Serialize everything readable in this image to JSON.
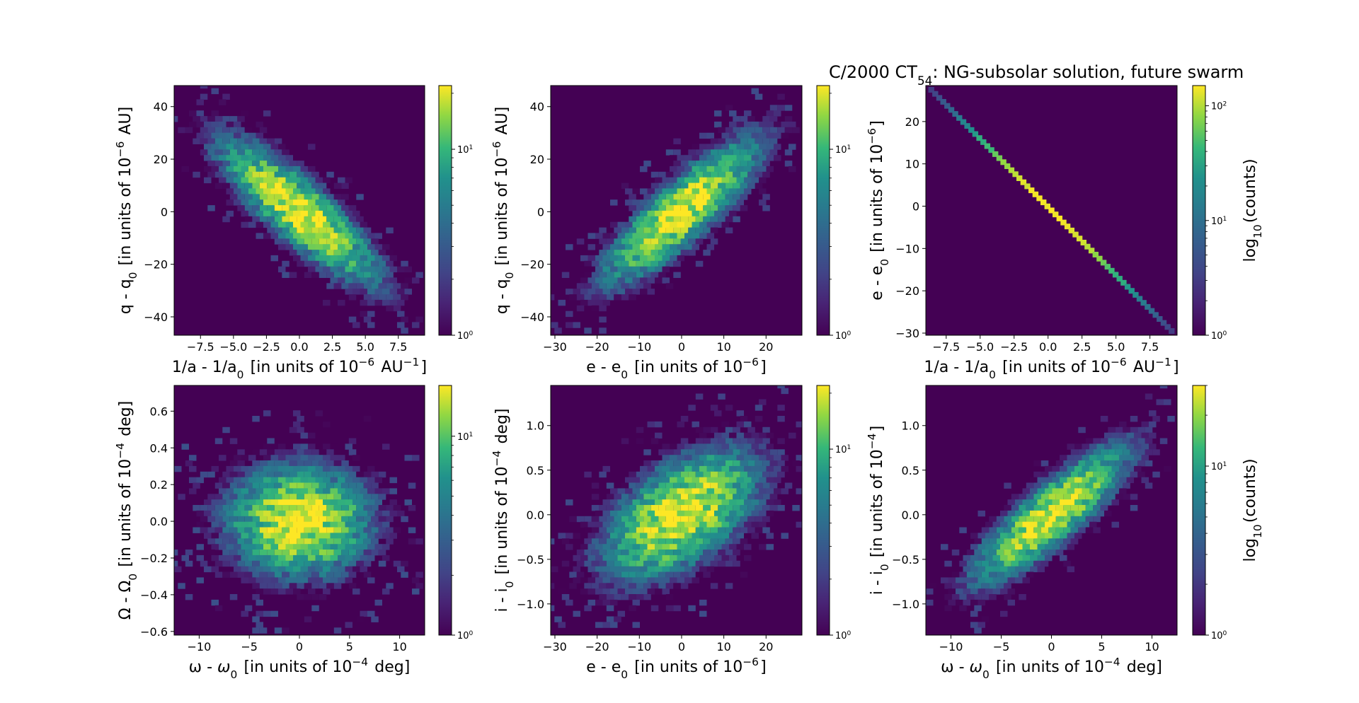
{
  "figure": {
    "title": "C/2000 CT54: NG-subsolar solution, future swarm",
    "title_main": "C/2000 CT",
    "title_sub": "54",
    "title_rest": ": NG-subsolar solution, future swarm",
    "colors": {
      "background": "#ffffff",
      "plot_bg": "#440154",
      "viridis_low": "#440154",
      "viridis_high": "#fde725"
    }
  },
  "chart_data": [
    {
      "type": "heatmap",
      "xlabel": "1/a - 1/a0 [in units of 10^-6 AU^-1]",
      "ylabel": "q - q0 [in units of 10^-6 AU]",
      "xlim": [
        -9.5,
        9.5
      ],
      "ylim": [
        -47,
        48
      ],
      "xticks": [
        "-7.5",
        "-5.0",
        "-2.5",
        "0.0",
        "2.5",
        "5.0",
        "7.5"
      ],
      "xtick_values": [
        -7.5,
        -5.0,
        -2.5,
        0.0,
        2.5,
        5.0,
        7.5
      ],
      "yticks": [
        "-40",
        "-20",
        "0",
        "20",
        "40"
      ],
      "ytick_values": [
        -40,
        -20,
        0,
        20,
        40
      ],
      "colorbar": {
        "scale": "log",
        "min": 1,
        "max": 22,
        "ticks": [
          {
            "base": "10",
            "exp": "0",
            "value": 1
          },
          {
            "base": "10",
            "exp": "1",
            "value": 10
          }
        ],
        "label": ""
      },
      "distribution": {
        "mean": [
          0,
          0
        ],
        "std": [
          3.3,
          15.0
        ],
        "corr": -0.85,
        "peak_count": 22
      }
    },
    {
      "type": "heatmap",
      "xlabel": "e - e0 [in units of 10^-6]",
      "ylabel": "q - q0 [in units of 10^-6 AU]",
      "xlim": [
        -31,
        28.5
      ],
      "ylim": [
        -47,
        48
      ],
      "xticks": [
        "-30",
        "-20",
        "-10",
        "0",
        "10",
        "20"
      ],
      "xtick_values": [
        -30,
        -20,
        -10,
        0,
        10,
        20
      ],
      "yticks": [
        "-40",
        "-20",
        "0",
        "20",
        "40"
      ],
      "ytick_values": [
        -40,
        -20,
        0,
        20,
        40
      ],
      "colorbar": {
        "scale": "log",
        "min": 1,
        "max": 22,
        "ticks": [
          {
            "base": "10",
            "exp": "0",
            "value": 1
          },
          {
            "base": "10",
            "exp": "1",
            "value": 10
          }
        ],
        "label": ""
      },
      "distribution": {
        "mean": [
          0,
          0
        ],
        "std": [
          10.0,
          15.0
        ],
        "corr": 0.85,
        "peak_count": 22
      }
    },
    {
      "type": "heatmap",
      "xlabel": "1/a - 1/a0 [in units of 10^-6 AU^-1]",
      "ylabel": "e - e0 [in units of 10^-6]",
      "xlim": [
        -9.0,
        9.5
      ],
      "ylim": [
        -30.5,
        28.5
      ],
      "xticks": [
        "-7.5",
        "-5.0",
        "-2.5",
        "0.0",
        "2.5",
        "5.0",
        "7.5"
      ],
      "xtick_values": [
        -7.5,
        -5.0,
        -2.5,
        0.0,
        2.5,
        5.0,
        7.5
      ],
      "yticks": [
        "-30",
        "-20",
        "-10",
        "0",
        "10",
        "20"
      ],
      "ytick_values": [
        -30,
        -20,
        -10,
        0,
        10,
        20
      ],
      "colorbar": {
        "scale": "log",
        "min": 1,
        "max": 150,
        "ticks": [
          {
            "base": "10",
            "exp": "0",
            "value": 1
          },
          {
            "base": "10",
            "exp": "1",
            "value": 10
          },
          {
            "base": "10",
            "exp": "2",
            "value": 100
          }
        ],
        "label": "log10(counts)"
      },
      "line": {
        "x_start": -8.6,
        "y_start": 27.5,
        "x_end": 9.1,
        "y_end": -29.5
      },
      "distribution": {
        "mean": [
          0,
          0
        ],
        "std": [
          3.3,
          10.0
        ],
        "corr": -1.0,
        "peak_count": 150
      }
    },
    {
      "type": "heatmap",
      "xlabel": "ω - ω0 [in units of 10^-4 deg]",
      "ylabel": "Ω - Ω0 [in units of 10^-4 deg]",
      "xlim": [
        -12.5,
        12.5
      ],
      "ylim": [
        -0.62,
        0.74
      ],
      "xticks": [
        "-10",
        "-5",
        "0",
        "5",
        "10"
      ],
      "xtick_values": [
        -10,
        -5,
        0,
        5,
        10
      ],
      "yticks": [
        "-0.6",
        "-0.4",
        "-0.2",
        "0.0",
        "0.2",
        "0.4",
        "0.6"
      ],
      "ytick_values": [
        -0.6,
        -0.4,
        -0.2,
        0.0,
        0.2,
        0.4,
        0.6
      ],
      "colorbar": {
        "scale": "log",
        "min": 1,
        "max": 18,
        "ticks": [
          {
            "base": "10",
            "exp": "0",
            "value": 1
          },
          {
            "base": "10",
            "exp": "1",
            "value": 10
          }
        ],
        "label": ""
      },
      "distribution": {
        "mean": [
          0,
          0
        ],
        "std": [
          4.0,
          0.17
        ],
        "corr": 0.0,
        "peak_count": 18
      }
    },
    {
      "type": "heatmap",
      "xlabel": "e - e0 [in units of 10^-6]",
      "ylabel": "i - i0 [in units of 10^-4 deg]",
      "xlim": [
        -31,
        28.5
      ],
      "ylim": [
        -1.35,
        1.45
      ],
      "xticks": [
        "-30",
        "-20",
        "-10",
        "0",
        "10",
        "20"
      ],
      "xtick_values": [
        -30,
        -20,
        -10,
        0,
        10,
        20
      ],
      "yticks": [
        "-1.0",
        "-0.5",
        "0.0",
        "0.5",
        "1.0"
      ],
      "ytick_values": [
        -1.0,
        -0.5,
        0.0,
        0.5,
        1.0
      ],
      "colorbar": {
        "scale": "log",
        "min": 1,
        "max": 22,
        "ticks": [
          {
            "base": "10",
            "exp": "0",
            "value": 1
          },
          {
            "base": "10",
            "exp": "1",
            "value": 10
          }
        ],
        "label": ""
      },
      "distribution": {
        "mean": [
          0,
          0
        ],
        "std": [
          10.0,
          0.4
        ],
        "corr": 0.55,
        "peak_count": 22
      }
    },
    {
      "type": "heatmap",
      "xlabel": "ω - ω0 [in units of 10^-4 deg]",
      "ylabel": "i - i0 [in units of 10^-4]",
      "xlim": [
        -12.5,
        12.5
      ],
      "ylim": [
        -1.35,
        1.45
      ],
      "xticks": [
        "-10",
        "-5",
        "0",
        "5",
        "10"
      ],
      "xtick_values": [
        -10,
        -5,
        0,
        5,
        10
      ],
      "yticks": [
        "-1.0",
        "-0.5",
        "0.0",
        "0.5",
        "1.0"
      ],
      "ytick_values": [
        -1.0,
        -0.5,
        0.0,
        0.5,
        1.0
      ],
      "colorbar": {
        "scale": "log",
        "min": 1,
        "max": 30,
        "ticks": [
          {
            "base": "10",
            "exp": "0",
            "value": 1
          },
          {
            "base": "10",
            "exp": "1",
            "value": 10
          }
        ],
        "label": "log10(counts)"
      },
      "distribution": {
        "mean": [
          0,
          0
        ],
        "std": [
          4.0,
          0.4
        ],
        "corr": 0.85,
        "peak_count": 30
      }
    }
  ]
}
